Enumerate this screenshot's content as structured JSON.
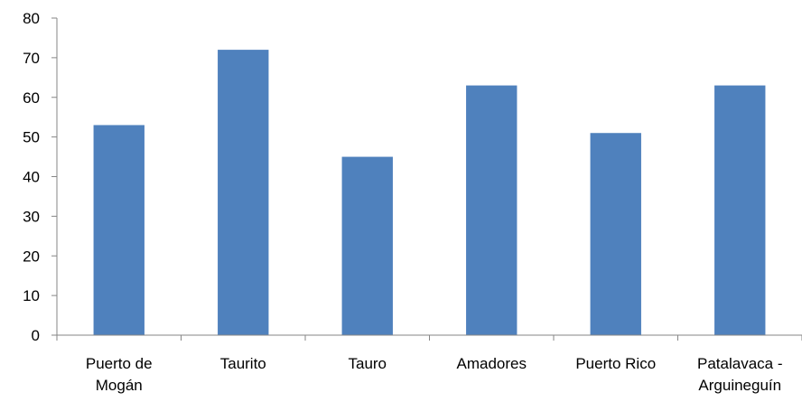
{
  "chart_data": {
    "type": "bar",
    "title": "",
    "xlabel": "",
    "ylabel": "",
    "categories": [
      [
        "Puerto de",
        "Mogán"
      ],
      [
        "Taurito"
      ],
      [
        "Tauro"
      ],
      [
        "Amadores"
      ],
      [
        "Puerto Rico"
      ],
      [
        "Patalavaca -",
        "Arguineguín"
      ]
    ],
    "values": [
      53,
      72,
      45,
      63,
      51,
      63
    ],
    "ylim": [
      0,
      80
    ],
    "yticks": [
      0,
      10,
      20,
      30,
      40,
      50,
      60,
      70,
      80
    ],
    "grid": false,
    "legend": "none",
    "bar_color": "#4F81BD",
    "axis_color": "#868686"
  }
}
